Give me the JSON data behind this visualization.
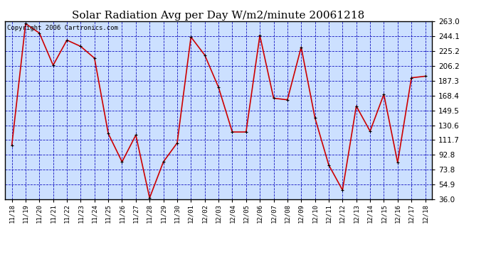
{
  "title": "Solar Radiation Avg per Day W/m2/minute 20061218",
  "copyright": "Copyright 2006 Cartronics.com",
  "dates": [
    "11/18",
    "11/19",
    "11/20",
    "11/21",
    "11/22",
    "11/23",
    "11/24",
    "11/25",
    "11/26",
    "11/27",
    "11/28",
    "11/29",
    "11/30",
    "12/01",
    "12/02",
    "12/03",
    "12/04",
    "12/05",
    "12/06",
    "12/07",
    "12/08",
    "12/09",
    "12/10",
    "12/11",
    "12/12",
    "12/13",
    "12/14",
    "12/15",
    "12/16",
    "12/17",
    "12/18"
  ],
  "values": [
    105.0,
    260.0,
    248.0,
    207.0,
    239.0,
    231.0,
    216.0,
    120.0,
    84.0,
    118.0,
    38.0,
    84.0,
    108.0,
    243.0,
    220.0,
    179.0,
    122.0,
    122.0,
    245.0,
    165.0,
    163.0,
    230.0,
    140.0,
    80.0,
    48.0,
    155.0,
    123.0,
    170.0,
    83.0,
    191.0,
    193.0
  ],
  "yticks": [
    36.0,
    54.9,
    73.8,
    92.8,
    111.7,
    130.6,
    149.5,
    168.4,
    187.3,
    206.2,
    225.2,
    244.1,
    263.0
  ],
  "ylim": [
    36.0,
    263.0
  ],
  "line_color": "#cc0000",
  "marker_color": "#000000",
  "bg_color": "#ffffff",
  "plot_bg_color": "#cce0ff",
  "grid_color": "#0000bb",
  "title_fontsize": 11,
  "copyright_fontsize": 6.5
}
